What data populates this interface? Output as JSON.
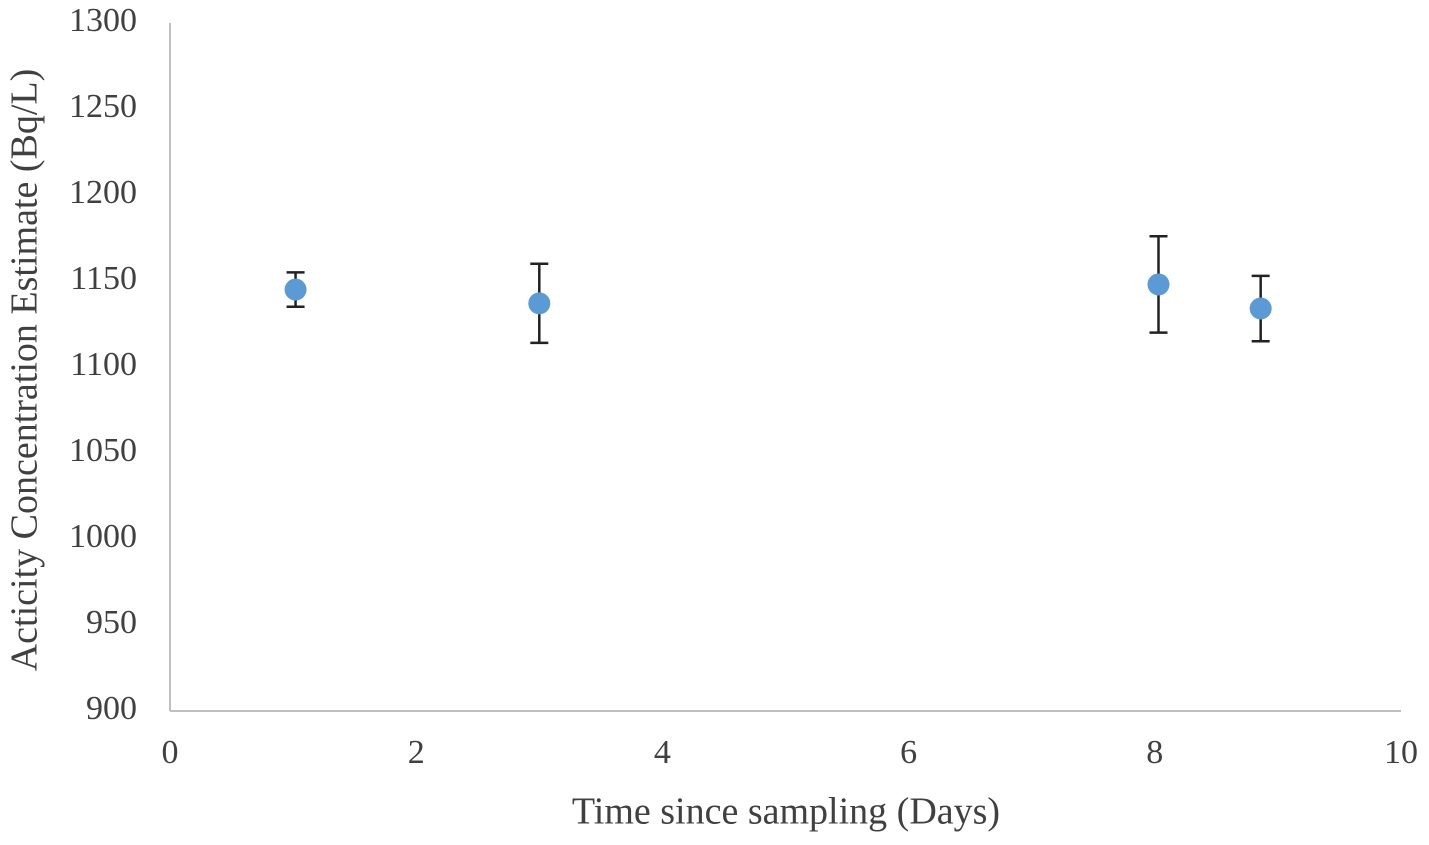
{
  "chart_data": {
    "type": "scatter",
    "x_label": "Time since sampling (Days)",
    "y_label": "Acticity Concentration Estimate (Bq/L)",
    "x": [
      1.02,
      3.0,
      8.03,
      8.86
    ],
    "values": [
      1145,
      1137,
      1148,
      1134
    ],
    "errors": [
      10,
      23,
      28,
      19
    ],
    "color": "#5b9bd5",
    "error_color": "#222222",
    "xlim": [
      0,
      10
    ],
    "xticks": [
      0,
      2,
      4,
      6,
      8,
      10
    ],
    "ylim": [
      900,
      1300
    ],
    "yticks": [
      900,
      950,
      1000,
      1050,
      1100,
      1150,
      1200,
      1250,
      1300
    ],
    "grid": false
  }
}
